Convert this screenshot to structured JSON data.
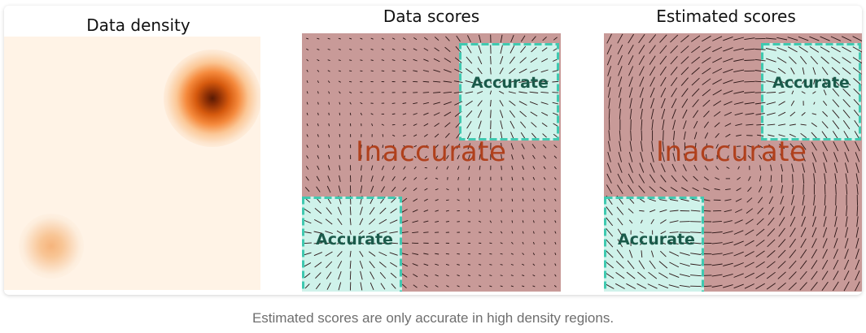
{
  "panels": {
    "density": {
      "title": "Data density"
    },
    "data_scores": {
      "title": "Data scores",
      "inaccurate_label": "Inaccurate",
      "accurate_top_label": "Accurate",
      "accurate_bottom_label": "Accurate"
    },
    "estimated_scores": {
      "title": "Estimated scores",
      "inaccurate_label": "Inaccurate",
      "accurate_top_label": "Accurate",
      "accurate_bottom_label": "Accurate"
    }
  },
  "caption": "Estimated scores are only accurate in high density regions.",
  "colors": {
    "density_background": "#fff3e6",
    "density_peak": "#5a1a04",
    "inaccurate_region": "#c89a98",
    "accurate_region": "#cff2ea",
    "accurate_border": "#3fc9b0",
    "arrow": "#2a1515",
    "inaccurate_text": "#b0401c",
    "accurate_text": "#1a5a4a"
  }
}
